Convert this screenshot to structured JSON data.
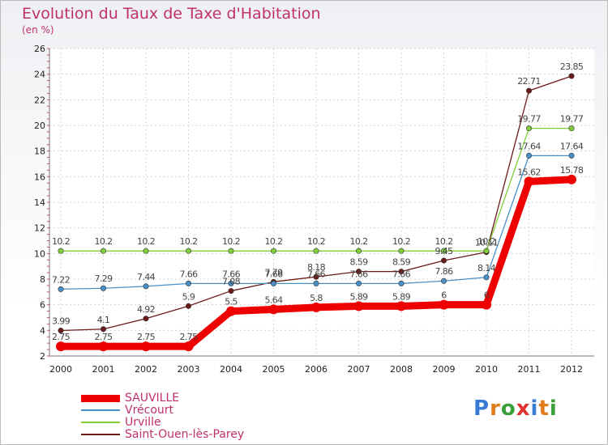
{
  "title": "Evolution du Taux de Taxe d'Habitation",
  "unit": "(en %)",
  "logo": {
    "letters": [
      "P",
      "r",
      "o",
      "x",
      "i",
      "t",
      "i"
    ],
    "colors": [
      "#3a7bd5",
      "#e07b1a",
      "#3aa13a",
      "#e03030",
      "#3a7bd5",
      "#e07b1a",
      "#3aa13a"
    ]
  },
  "chart_data": {
    "type": "line",
    "x": [
      "2000",
      "2001",
      "2002",
      "2003",
      "2004",
      "2005",
      "2006",
      "2007",
      "2008",
      "2009",
      "2010",
      "2011",
      "2012"
    ],
    "ylim": [
      2,
      26
    ],
    "yticks": [
      "2",
      "4",
      "6",
      "8",
      "10",
      "12",
      "14",
      "16",
      "18",
      "20",
      "22",
      "24",
      "26"
    ],
    "grid": true,
    "series": [
      {
        "name": "SAUVILLE",
        "color": "#ee0000",
        "values": [
          2.75,
          2.75,
          2.75,
          2.75,
          5.5,
          5.64,
          5.8,
          5.89,
          5.89,
          6,
          6,
          15.62,
          15.78
        ],
        "labels": [
          "2.75",
          "2.75",
          "2.75",
          "2.75",
          "5.5",
          "5.64",
          "5.8",
          "5.89",
          "5.89",
          "6",
          "6",
          "15.62",
          "15.78"
        ]
      },
      {
        "name": "Vrécourt",
        "color": "#4a90c8",
        "values": [
          7.22,
          7.29,
          7.44,
          7.66,
          7.66,
          7.66,
          7.66,
          7.66,
          7.66,
          7.86,
          8.14,
          17.64,
          17.64
        ],
        "labels": [
          "7.22",
          "7.29",
          "7.44",
          "7.66",
          "7.66",
          "7.66",
          "7.66",
          "7.66",
          "7.66",
          "7.86",
          "8.14",
          "17.64",
          "17.64"
        ]
      },
      {
        "name": "Urville",
        "color": "#7fcf3a",
        "values": [
          10.2,
          10.2,
          10.2,
          10.2,
          10.2,
          10.2,
          10.2,
          10.2,
          10.2,
          10.2,
          10.2,
          19.77,
          19.77
        ],
        "labels": [
          "10.2",
          "10.2",
          "10.2",
          "10.2",
          "10.2",
          "10.2",
          "10.2",
          "10.2",
          "10.2",
          "10.2",
          "10.2",
          "19.77",
          "19.77"
        ]
      },
      {
        "name": "Saint-Ouen-lès-Parey",
        "color": "#6b1a1a",
        "values": [
          3.99,
          4.1,
          4.92,
          5.9,
          7.08,
          7.79,
          8.18,
          8.59,
          8.59,
          9.45,
          10.11,
          22.71,
          23.85
        ],
        "labels": [
          "3.99",
          "4.1",
          "4.92",
          "5.9",
          "7.08",
          "7.79",
          "8.18",
          "8.59",
          "8.59",
          "9.45",
          "10.11",
          "22.71",
          "23.85"
        ]
      }
    ]
  }
}
